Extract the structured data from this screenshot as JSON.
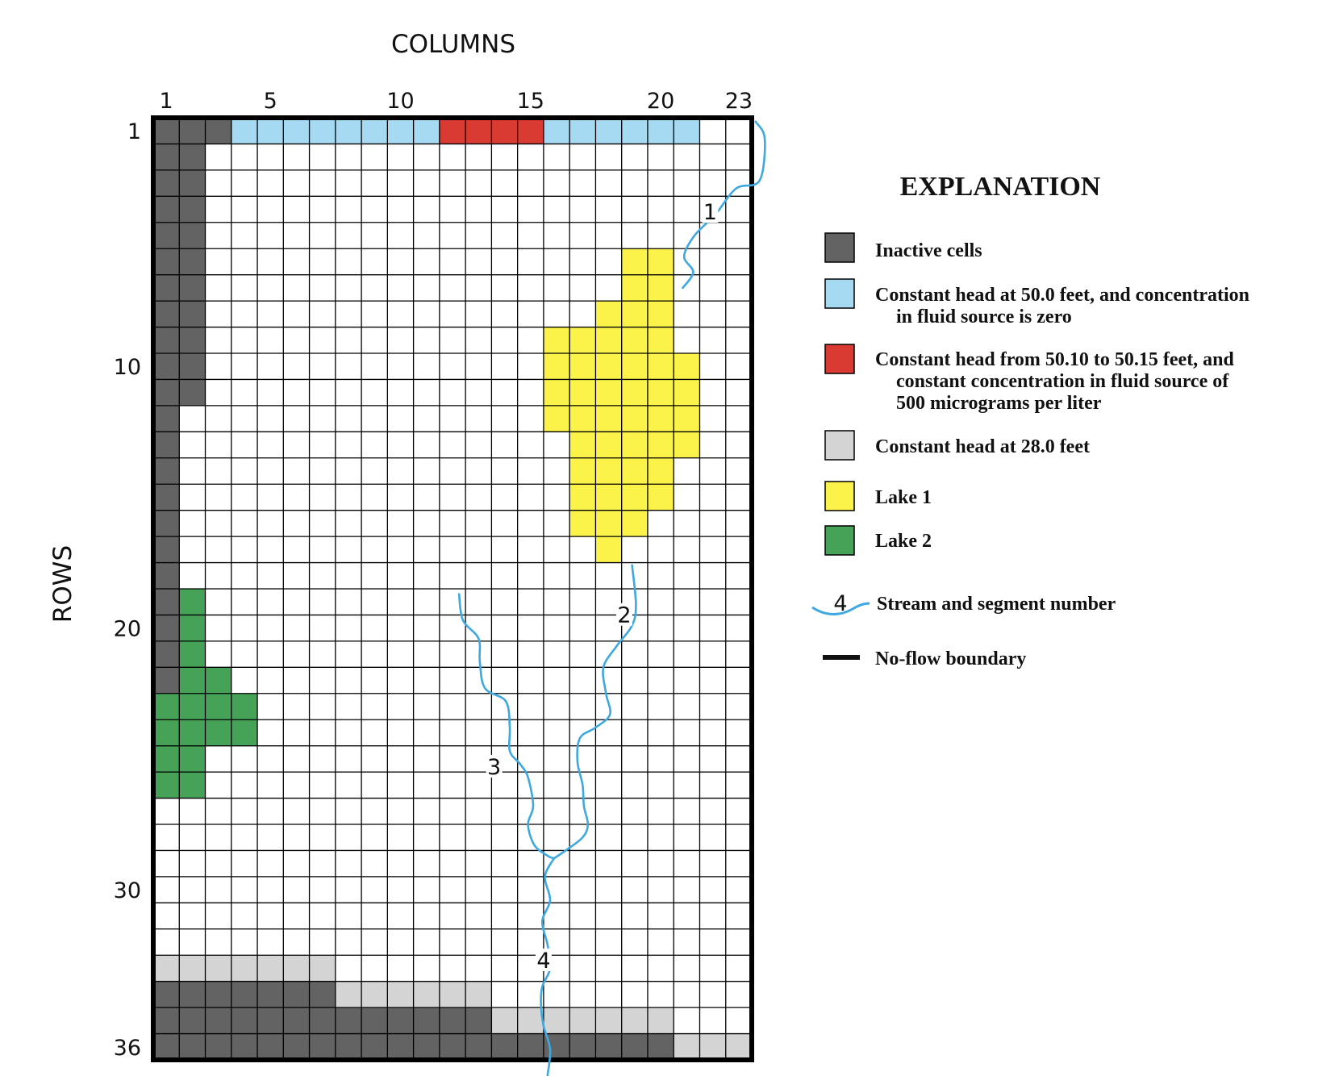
{
  "figure": {
    "columns_label": "COLUMNS",
    "rows_label": "ROWS",
    "n_cols": 23,
    "n_rows": 36,
    "col_ticks": [
      {
        "col": 1,
        "label": "1"
      },
      {
        "col": 5,
        "label": "5"
      },
      {
        "col": 10,
        "label": "10"
      },
      {
        "col": 15,
        "label": "15"
      },
      {
        "col": 20,
        "label": "20"
      },
      {
        "col": 23,
        "label": "23"
      }
    ],
    "row_ticks": [
      {
        "row": 1,
        "label": "1"
      },
      {
        "row": 10,
        "label": "10"
      },
      {
        "row": 20,
        "label": "20"
      },
      {
        "row": 30,
        "label": "30"
      },
      {
        "row": 36,
        "label": "36"
      }
    ]
  },
  "colors": {
    "inactive": "#636363",
    "const_head_50": "#a6d9f2",
    "const_head_conc": "#d93a32",
    "const_head_28": "#d4d4d4",
    "lake1": "#fbf24a",
    "lake2": "#46a256",
    "stream": "#3ea8e0",
    "grid": "#000000"
  },
  "cells": {
    "inactive": [
      {
        "row": 1,
        "c1": 1,
        "c2": 3
      },
      {
        "r1": 2,
        "r2": 11,
        "c1": 1,
        "c2": 2
      },
      {
        "r1": 12,
        "r2": 22,
        "c1": 1,
        "c2": 1
      },
      {
        "row": 34,
        "c1": 1,
        "c2": 7
      },
      {
        "row": 35,
        "c1": 1,
        "c2": 13
      },
      {
        "row": 36,
        "c1": 1,
        "c2": 20
      }
    ],
    "const_head_50": [
      {
        "row": 1,
        "c1": 4,
        "c2": 11
      },
      {
        "row": 1,
        "c1": 16,
        "c2": 21
      }
    ],
    "const_head_conc": [
      {
        "row": 1,
        "c1": 12,
        "c2": 15
      }
    ],
    "const_head_28": [
      {
        "row": 33,
        "c1": 1,
        "c2": 7
      },
      {
        "row": 34,
        "c1": 8,
        "c2": 13
      },
      {
        "row": 35,
        "c1": 14,
        "c2": 20
      },
      {
        "row": 36,
        "c1": 21,
        "c2": 23
      }
    ],
    "lake1": [
      {
        "r1": 6,
        "r2": 7,
        "c1": 19,
        "c2": 20
      },
      {
        "row": 8,
        "c1": 18,
        "c2": 20
      },
      {
        "row": 9,
        "c1": 16,
        "c2": 20
      },
      {
        "r1": 10,
        "r2": 12,
        "c1": 16,
        "c2": 21
      },
      {
        "row": 13,
        "c1": 17,
        "c2": 21
      },
      {
        "r1": 14,
        "r2": 15,
        "c1": 17,
        "c2": 20
      },
      {
        "row": 16,
        "c1": 17,
        "c2": 19
      },
      {
        "row": 17,
        "c1": 18,
        "c2": 18
      }
    ],
    "lake2": [
      {
        "r1": 19,
        "r2": 21,
        "c1": 2,
        "c2": 2
      },
      {
        "row": 22,
        "c1": 2,
        "c2": 3
      },
      {
        "r1": 23,
        "r2": 24,
        "c1": 1,
        "c2": 4
      },
      {
        "r1": 25,
        "r2": 26,
        "c1": 1,
        "c2": 2
      }
    ]
  },
  "streams": [
    {
      "segment": "1",
      "label_pos": [
        21.4,
        3.7
      ],
      "path": [
        [
          23.15,
          0.15
        ],
        [
          23.5,
          0.8
        ],
        [
          23.3,
          2.4
        ],
        [
          22.4,
          2.7
        ],
        [
          21.6,
          3.7
        ],
        [
          20.8,
          4.5
        ],
        [
          20.4,
          5.3
        ],
        [
          20.75,
          5.9
        ],
        [
          20.35,
          6.5
        ]
      ]
    },
    {
      "segment": "2",
      "label_pos": [
        18.1,
        19.1
      ],
      "path": [
        [
          18.4,
          17.1
        ],
        [
          18.55,
          18.6
        ],
        [
          18.4,
          19.4
        ],
        [
          17.8,
          20.2
        ],
        [
          17.3,
          21.0
        ],
        [
          17.4,
          22.0
        ],
        [
          17.55,
          22.8
        ],
        [
          17.0,
          23.3
        ],
        [
          16.4,
          23.7
        ],
        [
          16.3,
          24.6
        ],
        [
          16.5,
          25.5
        ],
        [
          16.55,
          26.3
        ],
        [
          16.7,
          27.0
        ],
        [
          16.5,
          27.5
        ],
        [
          15.85,
          28.0
        ],
        [
          15.4,
          28.3
        ]
      ]
    },
    {
      "segment": "3",
      "label_pos": [
        13.1,
        24.9
      ],
      "path": [
        [
          11.75,
          18.2
        ],
        [
          11.9,
          19.2
        ],
        [
          12.5,
          19.9
        ],
        [
          12.55,
          20.8
        ],
        [
          12.75,
          21.8
        ],
        [
          13.55,
          22.3
        ],
        [
          13.7,
          23.3
        ],
        [
          13.7,
          24.2
        ],
        [
          14.1,
          24.7
        ],
        [
          14.4,
          25.2
        ],
        [
          14.6,
          26.3
        ],
        [
          14.4,
          27.0
        ],
        [
          14.65,
          27.8
        ],
        [
          15.15,
          28.2
        ],
        [
          15.4,
          28.3
        ]
      ]
    },
    {
      "segment": "4",
      "label_pos": [
        15.0,
        32.3
      ],
      "path": [
        [
          15.4,
          28.3
        ],
        [
          15.05,
          29.0
        ],
        [
          15.25,
          29.9
        ],
        [
          14.95,
          30.7
        ],
        [
          15.15,
          31.6
        ],
        [
          15.25,
          32.5
        ],
        [
          14.95,
          33.2
        ],
        [
          14.9,
          33.9
        ],
        [
          15.0,
          34.7
        ],
        [
          15.25,
          35.6
        ],
        [
          15.15,
          36.6
        ]
      ]
    }
  ],
  "legend": {
    "title": "EXPLANATION",
    "items": [
      {
        "key": "inactive",
        "lines": [
          "Inactive cells"
        ]
      },
      {
        "key": "const_head_50",
        "lines": [
          "Constant head at 50.0 feet, and concentration",
          "in fluid source is zero"
        ]
      },
      {
        "key": "const_head_conc",
        "lines": [
          "Constant head from 50.10 to 50.15 feet, and",
          "constant concentration in fluid source of",
          "500 micrograms per liter"
        ]
      },
      {
        "key": "const_head_28",
        "lines": [
          "Constant head at 28.0 feet"
        ]
      },
      {
        "key": "lake1",
        "lines": [
          "Lake 1"
        ]
      },
      {
        "key": "lake2",
        "lines": [
          "Lake 2"
        ]
      }
    ],
    "stream_item": {
      "number": "4",
      "label": "Stream and segment number"
    },
    "noflow_item": {
      "label": "No-flow boundary"
    }
  }
}
